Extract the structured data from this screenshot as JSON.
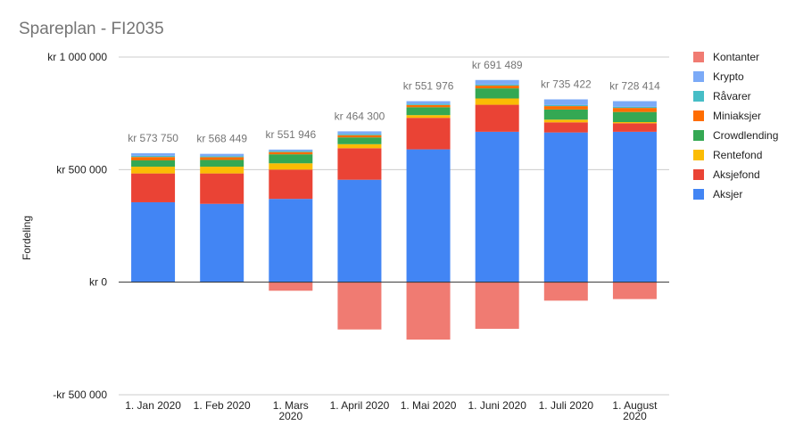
{
  "chart_data": {
    "type": "bar",
    "stacked": true,
    "title": "Spareplan - FI2035",
    "ylabel": "Fordeling",
    "xlabel": "",
    "ylim": [
      -500000,
      1000000
    ],
    "y_ticks": [
      {
        "value": 1000000,
        "label": "kr 1 000 000"
      },
      {
        "value": 500000,
        "label": "kr 500 000"
      },
      {
        "value": 0,
        "label": "kr   0"
      },
      {
        "value": -500000,
        "label": "-kr  500 000"
      }
    ],
    "categories": [
      [
        "1. Jan 2020"
      ],
      [
        "1. Feb 2020"
      ],
      [
        "1. Mars",
        "2020"
      ],
      [
        "1. April 2020"
      ],
      [
        "1. Mai 2020"
      ],
      [
        "1. Juni 2020"
      ],
      [
        "1. Juli 2020"
      ],
      [
        "1. August",
        "2020"
      ]
    ],
    "total_labels": [
      "kr  573 750",
      "kr  568 449",
      "kr  551 946",
      "kr  464 300",
      "kr  551 976",
      "kr  691 489",
      "kr  735 422",
      "kr  728 414"
    ],
    "legend_position": "right",
    "gridlines": true,
    "series": [
      {
        "name": "Aksjer",
        "color": "#4285f4",
        "values": [
          355000,
          348000,
          370000,
          455000,
          590000,
          668000,
          665000,
          668000
        ]
      },
      {
        "name": "Aksjefond",
        "color": "#ea4335",
        "values": [
          128000,
          135000,
          130000,
          140000,
          140000,
          120000,
          45000,
          38000
        ]
      },
      {
        "name": "Rentefond",
        "color": "#fbbc04",
        "values": [
          30000,
          30000,
          28000,
          18000,
          12000,
          28000,
          12000,
          5000
        ]
      },
      {
        "name": "Crowdlending",
        "color": "#34a853",
        "values": [
          28000,
          30000,
          40000,
          30000,
          35000,
          45000,
          45000,
          45000
        ]
      },
      {
        "name": "Miniaksjer",
        "color": "#ff6d01",
        "values": [
          15000,
          12000,
          10000,
          10000,
          10000,
          12000,
          15000,
          18000
        ]
      },
      {
        "name": "Råvarer",
        "color": "#46bdc6",
        "values": [
          5000,
          5000,
          5000,
          5000,
          5000,
          5000,
          5000,
          5000
        ]
      },
      {
        "name": "Krypto",
        "color": "#7baaf7",
        "values": [
          12000,
          10000,
          6000,
          12000,
          12000,
          20000,
          25000,
          25000
        ]
      },
      {
        "name": "Kontanter",
        "color": "#f07b72",
        "values": [
          0,
          0,
          -38000,
          -210000,
          -255000,
          -207000,
          -82000,
          -75000
        ]
      }
    ],
    "legend_order": [
      "Kontanter",
      "Krypto",
      "Råvarer",
      "Miniaksjer",
      "Crowdlending",
      "Rentefond",
      "Aksjefond",
      "Aksjer"
    ]
  }
}
